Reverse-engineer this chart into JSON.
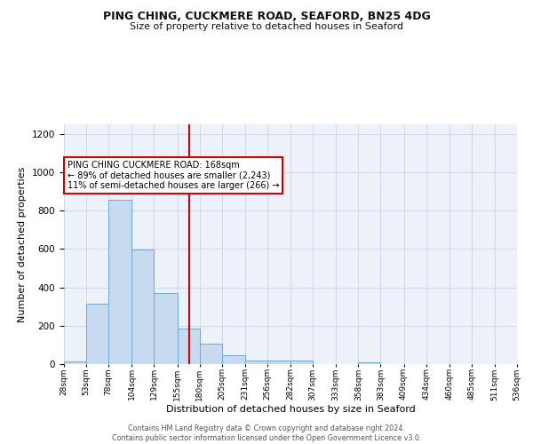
{
  "title_line1": "PING CHING, CUCKMERE ROAD, SEAFORD, BN25 4DG",
  "title_line2": "Size of property relative to detached houses in Seaford",
  "xlabel": "Distribution of detached houses by size in Seaford",
  "ylabel": "Number of detached properties",
  "footnote": "Contains HM Land Registry data © Crown copyright and database right 2024.\nContains public sector information licensed under the Open Government Licence v3.0.",
  "bar_color": "#c8daf0",
  "bar_edge_color": "#6aaad4",
  "reference_line_x": 168,
  "reference_line_color": "#cc0000",
  "annotation_text": "PING CHING CUCKMERE ROAD: 168sqm\n← 89% of detached houses are smaller (2,243)\n11% of semi-detached houses are larger (266) →",
  "bin_edges": [
    28,
    53,
    78,
    104,
    129,
    155,
    180,
    205,
    231,
    256,
    282,
    307,
    333,
    358,
    383,
    409,
    434,
    460,
    485,
    511,
    536
  ],
  "bar_heights": [
    15,
    315,
    855,
    595,
    370,
    185,
    105,
    45,
    20,
    17,
    17,
    0,
    0,
    10,
    0,
    0,
    0,
    0,
    0,
    0
  ],
  "ylim": [
    0,
    1250
  ],
  "yticks": [
    0,
    200,
    400,
    600,
    800,
    1000,
    1200
  ],
  "tick_labels": [
    "28sqm",
    "53sqm",
    "78sqm",
    "104sqm",
    "129sqm",
    "155sqm",
    "180sqm",
    "205sqm",
    "231sqm",
    "256sqm",
    "282sqm",
    "307sqm",
    "333sqm",
    "358sqm",
    "383sqm",
    "409sqm",
    "434sqm",
    "460sqm",
    "485sqm",
    "511sqm",
    "536sqm"
  ],
  "bg_color": "#edf2fa",
  "grid_color": "#d0d8ec"
}
